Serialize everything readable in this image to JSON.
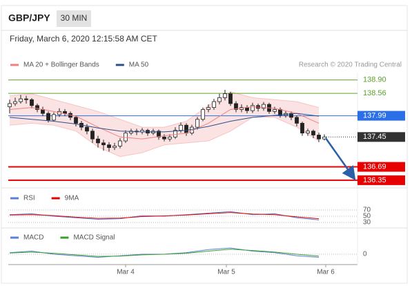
{
  "header": {
    "symbol": "GBP/JPY",
    "interval": "30 MIN",
    "timestamp": "Friday, March 6, 2020 12:15:58 AM CET"
  },
  "chart_data": [
    {
      "type": "candlestick",
      "credit": "Research © 2020 Trading Central",
      "ylim": [
        136.19,
        139.09
      ],
      "open": [
        138.22,
        138.3,
        138.35,
        138.42,
        138.4,
        138.25,
        138.15,
        138.05,
        137.88,
        138.02,
        138.1,
        138.05,
        137.95,
        137.8,
        137.7,
        137.6,
        137.4,
        137.3,
        137.25,
        137.18,
        137.22,
        137.35,
        137.55,
        137.6,
        137.58,
        137.62,
        137.55,
        137.6,
        137.45,
        137.4,
        137.45,
        137.62,
        137.75,
        137.55,
        137.7,
        137.9,
        138.15,
        138.2,
        138.35,
        138.45,
        138.55,
        138.3,
        138.15,
        138.2,
        138.12,
        138.25,
        138.18,
        138.28,
        138.1,
        138.15,
        138.0,
        138.05,
        137.95,
        137.8,
        137.55,
        137.6,
        137.5,
        137.4
      ],
      "high": [
        138.4,
        138.45,
        138.52,
        138.5,
        138.44,
        138.3,
        138.22,
        138.1,
        138.08,
        138.18,
        138.16,
        138.1,
        138.0,
        137.86,
        137.78,
        137.66,
        137.48,
        137.38,
        137.32,
        137.3,
        137.42,
        137.62,
        137.66,
        137.66,
        137.68,
        137.66,
        137.66,
        137.64,
        137.52,
        137.52,
        137.7,
        137.82,
        137.8,
        137.76,
        137.96,
        138.2,
        138.28,
        138.42,
        138.55,
        138.65,
        138.6,
        138.36,
        138.28,
        138.26,
        138.32,
        138.3,
        138.34,
        138.32,
        138.22,
        138.2,
        138.12,
        138.1,
        138.0,
        137.84,
        137.66,
        137.64,
        137.56,
        137.52
      ],
      "low": [
        138.05,
        138.24,
        138.3,
        138.3,
        138.18,
        138.08,
        137.98,
        137.82,
        137.84,
        137.96,
        137.98,
        137.88,
        137.72,
        137.62,
        137.52,
        137.3,
        137.18,
        137.1,
        137.08,
        137.12,
        137.16,
        137.3,
        137.5,
        137.5,
        137.52,
        137.48,
        137.5,
        137.38,
        137.34,
        137.34,
        137.4,
        137.56,
        137.48,
        137.5,
        137.64,
        137.85,
        138.08,
        138.14,
        138.28,
        138.38,
        138.24,
        138.08,
        138.08,
        138.05,
        138.06,
        138.1,
        138.12,
        138.04,
        138.04,
        137.94,
        137.94,
        137.88,
        137.72,
        137.48,
        137.48,
        137.42,
        137.32,
        137.36
      ],
      "close": [
        138.3,
        138.35,
        138.42,
        138.4,
        138.25,
        138.15,
        138.05,
        137.88,
        138.02,
        138.1,
        138.05,
        137.95,
        137.8,
        137.7,
        137.6,
        137.4,
        137.3,
        137.25,
        137.18,
        137.22,
        137.35,
        137.55,
        137.6,
        137.58,
        137.62,
        137.55,
        137.6,
        137.45,
        137.4,
        137.45,
        137.62,
        137.75,
        137.55,
        137.7,
        137.9,
        138.15,
        138.2,
        138.35,
        138.45,
        138.55,
        138.3,
        138.15,
        138.2,
        138.12,
        138.25,
        138.18,
        138.28,
        138.1,
        138.15,
        138.0,
        138.05,
        137.95,
        137.8,
        137.55,
        137.6,
        137.5,
        137.4,
        137.45
      ],
      "overlay_x": [
        0,
        4,
        8,
        12,
        16,
        20,
        24,
        28,
        32,
        36,
        40,
        44,
        48,
        52,
        56
      ],
      "series": [
        {
          "name": "MA 20 + Bollinger Bands",
          "color": "#f08080",
          "values": [
            138.15,
            138.2,
            138.1,
            137.98,
            137.7,
            137.45,
            137.4,
            137.48,
            137.55,
            137.8,
            138.15,
            138.22,
            138.18,
            138.05,
            137.8
          ],
          "upper": [
            138.5,
            138.55,
            138.4,
            138.25,
            138.1,
            137.9,
            137.7,
            137.7,
            137.85,
            138.25,
            138.6,
            138.45,
            138.4,
            138.35,
            138.2
          ],
          "lower": [
            137.75,
            137.8,
            137.75,
            137.6,
            137.2,
            136.95,
            137.05,
            137.25,
            137.3,
            137.35,
            137.6,
            137.95,
            137.95,
            137.7,
            137.35
          ]
        },
        {
          "name": "MA 50",
          "color": "#2b4f8a",
          "values": [
            137.95,
            137.9,
            137.85,
            137.78,
            137.68,
            137.6,
            137.58,
            137.58,
            137.62,
            137.72,
            137.85,
            137.95,
            138.0,
            138.05,
            137.98
          ]
        }
      ],
      "levels": [
        {
          "value": {
            "value": 138.9,
            "label": "138.90"
          },
          "color": "#5aa02c",
          "style": "thin"
        },
        {
          "value": 138.56,
          "color": "#5aa02c",
          "style": "thin"
        },
        {
          "value": 137.99,
          "color": "#2a6ee8",
          "style": "box"
        },
        {
          "value": 137.45,
          "color": "#333333",
          "style": "dotted"
        },
        {
          "value": 136.69,
          "color": "#e60000",
          "style": "box"
        },
        {
          "value": 136.35,
          "color": "#e60000",
          "style": "box"
        }
      ],
      "x_labels": [
        {
          "value": 21,
          "label": "Mar 4"
        },
        {
          "value": 39.25,
          "label": "Mar 5"
        },
        {
          "value": 57.25,
          "label": "Mar 6"
        }
      ]
    },
    {
      "type": "line",
      "ylim": [
        20,
        80
      ],
      "yticks": [
        70,
        50,
        30
      ],
      "x": [
        0,
        4,
        8,
        12,
        16,
        20,
        24,
        28,
        32,
        36,
        40,
        44,
        48,
        52,
        56
      ],
      "series": [
        {
          "name": "RSI",
          "color": "#5b7fd6",
          "values": [
            55,
            58,
            50,
            45,
            40,
            42,
            52,
            50,
            55,
            60,
            65,
            55,
            58,
            45,
            38
          ]
        },
        {
          "name": "9MA",
          "color": "#e60000",
          "values": [
            54,
            55,
            52,
            47,
            43,
            44,
            49,
            51,
            54,
            58,
            62,
            57,
            55,
            48,
            42
          ]
        }
      ]
    },
    {
      "type": "line",
      "ylim": [
        -0.4,
        0.4
      ],
      "yticks": [
        0
      ],
      "x": [
        0,
        4,
        8,
        12,
        16,
        20,
        24,
        28,
        32,
        36,
        40,
        44,
        48,
        52,
        56
      ],
      "series": [
        {
          "name": "MACD",
          "color": "#5b7fd6",
          "values": [
            0.05,
            0.1,
            0,
            -0.05,
            -0.1,
            -0.05,
            0,
            0,
            0.05,
            0.15,
            0.2,
            0.1,
            0.05,
            -0.05,
            -0.1
          ]
        },
        {
          "name": "MACD Signal",
          "color": "#3aa02c",
          "values": [
            0.04,
            0.07,
            0.03,
            -0.02,
            -0.07,
            -0.06,
            -0.02,
            0,
            0.03,
            0.1,
            0.16,
            0.12,
            0.07,
            0,
            -0.06
          ]
        }
      ]
    }
  ]
}
